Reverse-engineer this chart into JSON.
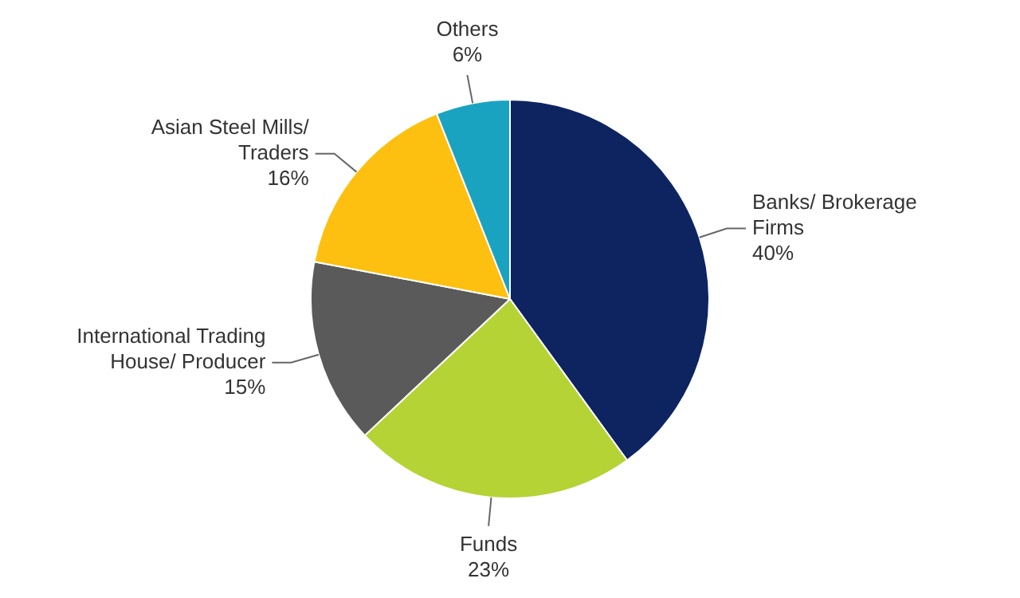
{
  "chart_data": {
    "type": "pie",
    "categories": [
      "Banks/ Brokerage Firms",
      "Funds",
      "International Trading House/ Producer",
      "Asian Steel Mills/ Traders",
      "Others"
    ],
    "values": [
      40,
      23,
      15,
      16,
      6
    ],
    "value_labels": [
      "40%",
      "23%",
      "15%",
      "16%",
      "6%"
    ],
    "colors": [
      "#0d2461",
      "#b5d334",
      "#5a5a5a",
      "#fdc010",
      "#1aa3c0"
    ],
    "legend": false
  }
}
